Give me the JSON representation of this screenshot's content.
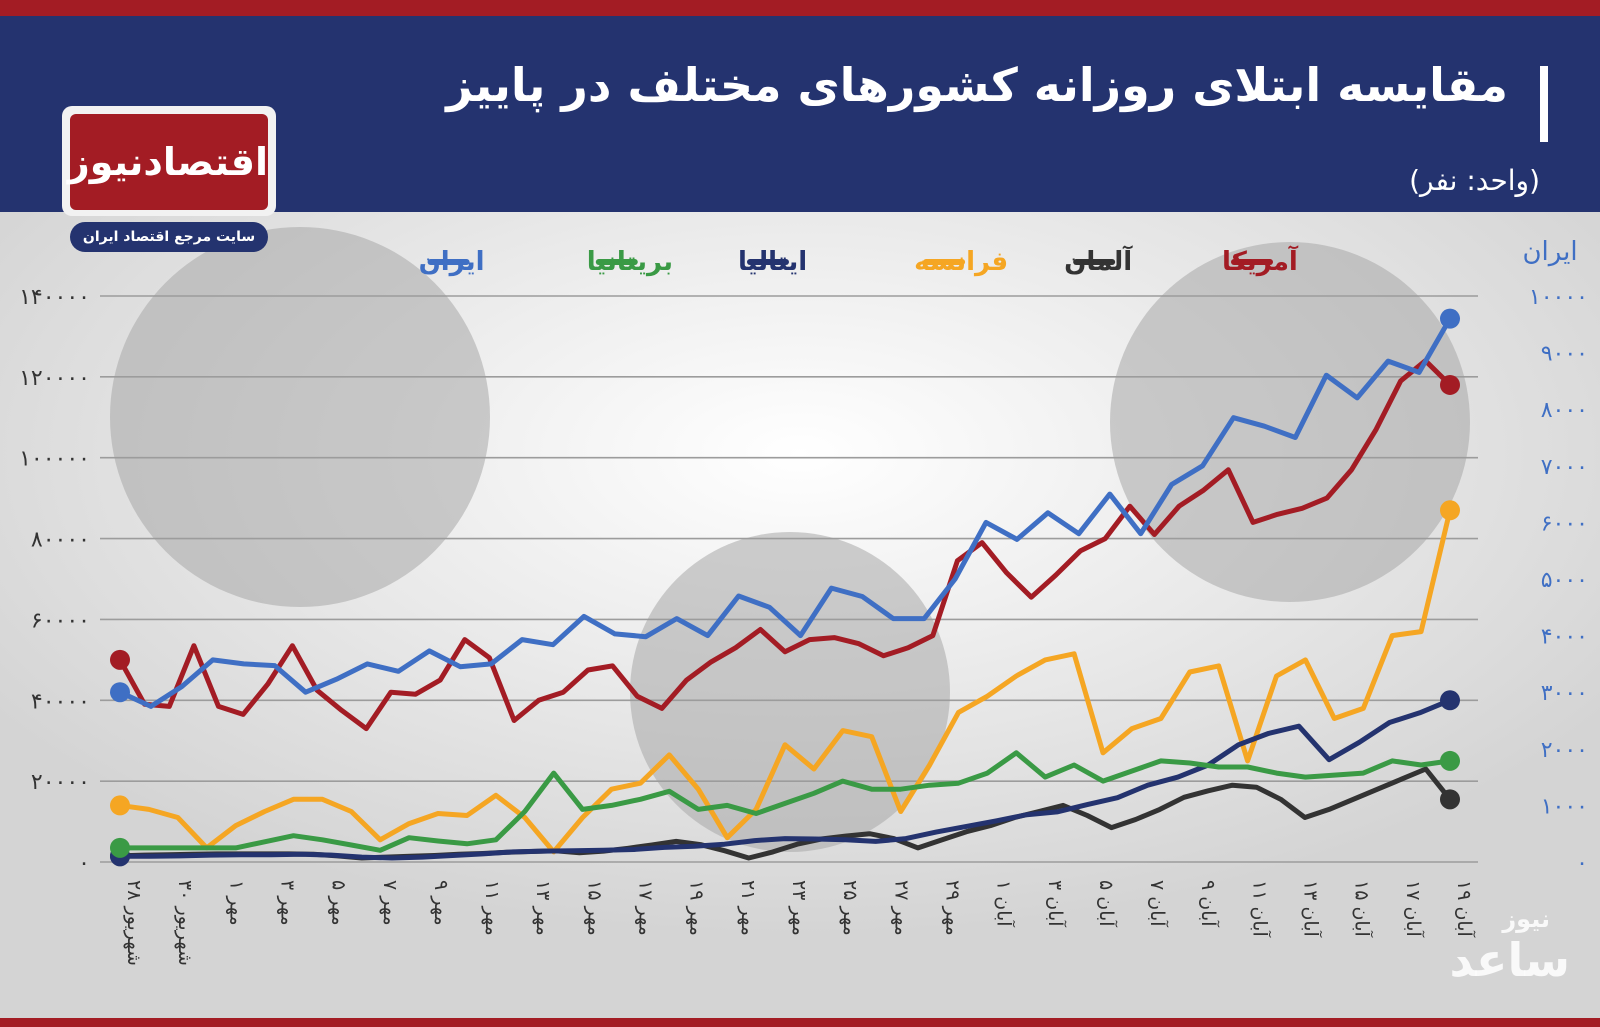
{
  "header": {
    "title": "مقایسه ابتلای روزانه کشورهای مختلف در پاییز",
    "unit": "(واحد: نفر)"
  },
  "logo": {
    "name": "اقتصادنیوز",
    "tagline": "سایت مرجع اقتصاد ایران"
  },
  "watermark": {
    "top": "نیوز",
    "main": "ساعد"
  },
  "colors": {
    "header_bg": "#24336f",
    "accent_red": "#a31c24",
    "usa": "#a31c24",
    "germany": "#333333",
    "france": "#f5a623",
    "italy": "#24336f",
    "uk": "#3a9a45",
    "iran": "#3f6fc4"
  },
  "chart_data": {
    "type": "line",
    "title": "مقایسه ابتلای روزانه کشورهای مختلف در پاییز",
    "subtitle": "(واحد: نفر)",
    "left_ticks": [
      "۰",
      "۲۰۰۰۰",
      "۴۰۰۰۰",
      "۶۰۰۰۰",
      "۸۰۰۰۰",
      "۱۰۰۰۰۰",
      "۱۲۰۰۰۰",
      "۱۴۰۰۰۰"
    ],
    "left_ylim": [
      0,
      140000
    ],
    "right_axis_label": "ایران",
    "right_ticks": [
      "۰",
      "۱۰۰۰",
      "۲۰۰۰",
      "۳۰۰۰",
      "۴۰۰۰",
      "۵۰۰۰",
      "۶۰۰۰",
      "۷۰۰۰",
      "۸۰۰۰",
      "۹۰۰۰",
      "۱۰۰۰۰"
    ],
    "right_ylim": [
      0,
      10000
    ],
    "x_labels": [
      "۲۸ شهریور",
      "۳۰ شهریور",
      "۱ مهر",
      "۳ مهر",
      "۵ مهر",
      "۷ مهر",
      "۹ مهر",
      "۱۱ مهر",
      "۱۳ مهر",
      "۱۵ مهر",
      "۱۷ مهر",
      "۱۹ مهر",
      "۲۱ مهر",
      "۲۳ مهر",
      "۲۵ مهر",
      "۲۷ مهر",
      "۲۹ مهر",
      "۱ آبان",
      "۳ آبان",
      "۵ آبان",
      "۷ آبان",
      "۹ آبان",
      "۱۱ آبان",
      "۱۳ آبان",
      "۱۵ آبان",
      "۱۷ آبان",
      "۱۹ آبان"
    ],
    "grid": true,
    "legend_position": "top",
    "series": [
      {
        "name": "آمریکا",
        "axis": "left",
        "color": "#a31c24",
        "values": [
          50000,
          39000,
          38500,
          53500,
          38500,
          36500,
          44000,
          53500,
          42500,
          37500,
          33000,
          42000,
          41500,
          45000,
          55000,
          50500,
          35000,
          40000,
          42000,
          47500,
          48500,
          41000,
          38000,
          45000,
          49500,
          53000,
          57500,
          52000,
          55000,
          55500,
          54000,
          51000,
          53000,
          56000,
          74500,
          79000,
          71500,
          65500,
          71000,
          77000,
          80000,
          88000,
          81000,
          88000,
          92000,
          97000,
          84000,
          86000,
          87500,
          90000,
          97000,
          107000,
          119000,
          124000,
          118000
        ]
      },
      {
        "name": "آلمان",
        "axis": "left",
        "color": "#333333",
        "values": [
          1500,
          1700,
          1800,
          1900,
          2000,
          2000,
          2000,
          2000,
          1900,
          1500,
          1000,
          1200,
          1400,
          1600,
          1900,
          2100,
          2400,
          2600,
          2800,
          2300,
          2700,
          3400,
          4200,
          5100,
          4300,
          2800,
          1000,
          2500,
          4400,
          5700,
          6400,
          7000,
          5800,
          3500,
          5500,
          7500,
          9000,
          11000,
          12500,
          14000,
          11500,
          8500,
          10500,
          13000,
          16000,
          17600,
          19000,
          18500,
          15500,
          11000,
          13000,
          15500,
          18000,
          20500,
          23000,
          15500
        ]
      },
      {
        "name": "فرانسه",
        "axis": "left",
        "color": "#f5a623",
        "values": [
          14000,
          13000,
          11000,
          3500,
          9000,
          12500,
          15500,
          15500,
          12500,
          5500,
          9500,
          12000,
          11500,
          16500,
          11000,
          2500,
          11000,
          18000,
          19500,
          26500,
          18000,
          6000,
          13000,
          29000,
          23000,
          32500,
          31000,
          12500,
          24000,
          37000,
          41000,
          46000,
          50000,
          51500,
          27000,
          33000,
          35500,
          47000,
          48500,
          25000,
          46000,
          50000,
          35500,
          38000,
          56000,
          57000,
          87000
        ]
      },
      {
        "name": "ایتالیا",
        "axis": "left",
        "color": "#24336f",
        "values": [
          1400,
          1400,
          1500,
          1700,
          1800,
          1800,
          1900,
          1700,
          1200,
          1000,
          1200,
          1600,
          2000,
          2500,
          2700,
          2800,
          2900,
          3100,
          3600,
          3900,
          4400,
          5300,
          5800,
          5700,
          5500,
          5100,
          5800,
          7400,
          8800,
          10200,
          11700,
          12400,
          14200,
          15900,
          19000,
          21000,
          24000,
          29000,
          31800,
          33600,
          25300,
          29600,
          34500,
          36900,
          40000
        ]
      },
      {
        "name": "بریتانیا",
        "axis": "left",
        "color": "#3a9a45",
        "values": [
          3500,
          3500,
          3500,
          3500,
          3500,
          5000,
          6500,
          5500,
          4200,
          2900,
          6000,
          5200,
          4500,
          5500,
          12500,
          22000,
          13000,
          14000,
          15500,
          17500,
          13000,
          14000,
          12000,
          14500,
          17000,
          20000,
          18000,
          18000,
          19000,
          19500,
          22000,
          27000,
          21000,
          24000,
          20000,
          22500,
          25000,
          24500,
          23500,
          23500,
          22000,
          21000,
          21500,
          22000,
          25000,
          24000,
          25000
        ]
      },
      {
        "name": "ایران",
        "axis": "right",
        "color": "#3f6fc4",
        "values": [
          3000,
          2750,
          3100,
          3570,
          3500,
          3470,
          3000,
          3230,
          3500,
          3370,
          3730,
          3450,
          3500,
          3930,
          3840,
          4340,
          4030,
          3980,
          4300,
          4000,
          4700,
          4500,
          4000,
          4840,
          4690,
          4300,
          4300,
          5000,
          6000,
          5700,
          6170,
          5800,
          6500,
          5800,
          6670,
          7000,
          7850,
          7700,
          7500,
          8600,
          8200,
          8850,
          8650,
          9600
        ]
      }
    ]
  }
}
